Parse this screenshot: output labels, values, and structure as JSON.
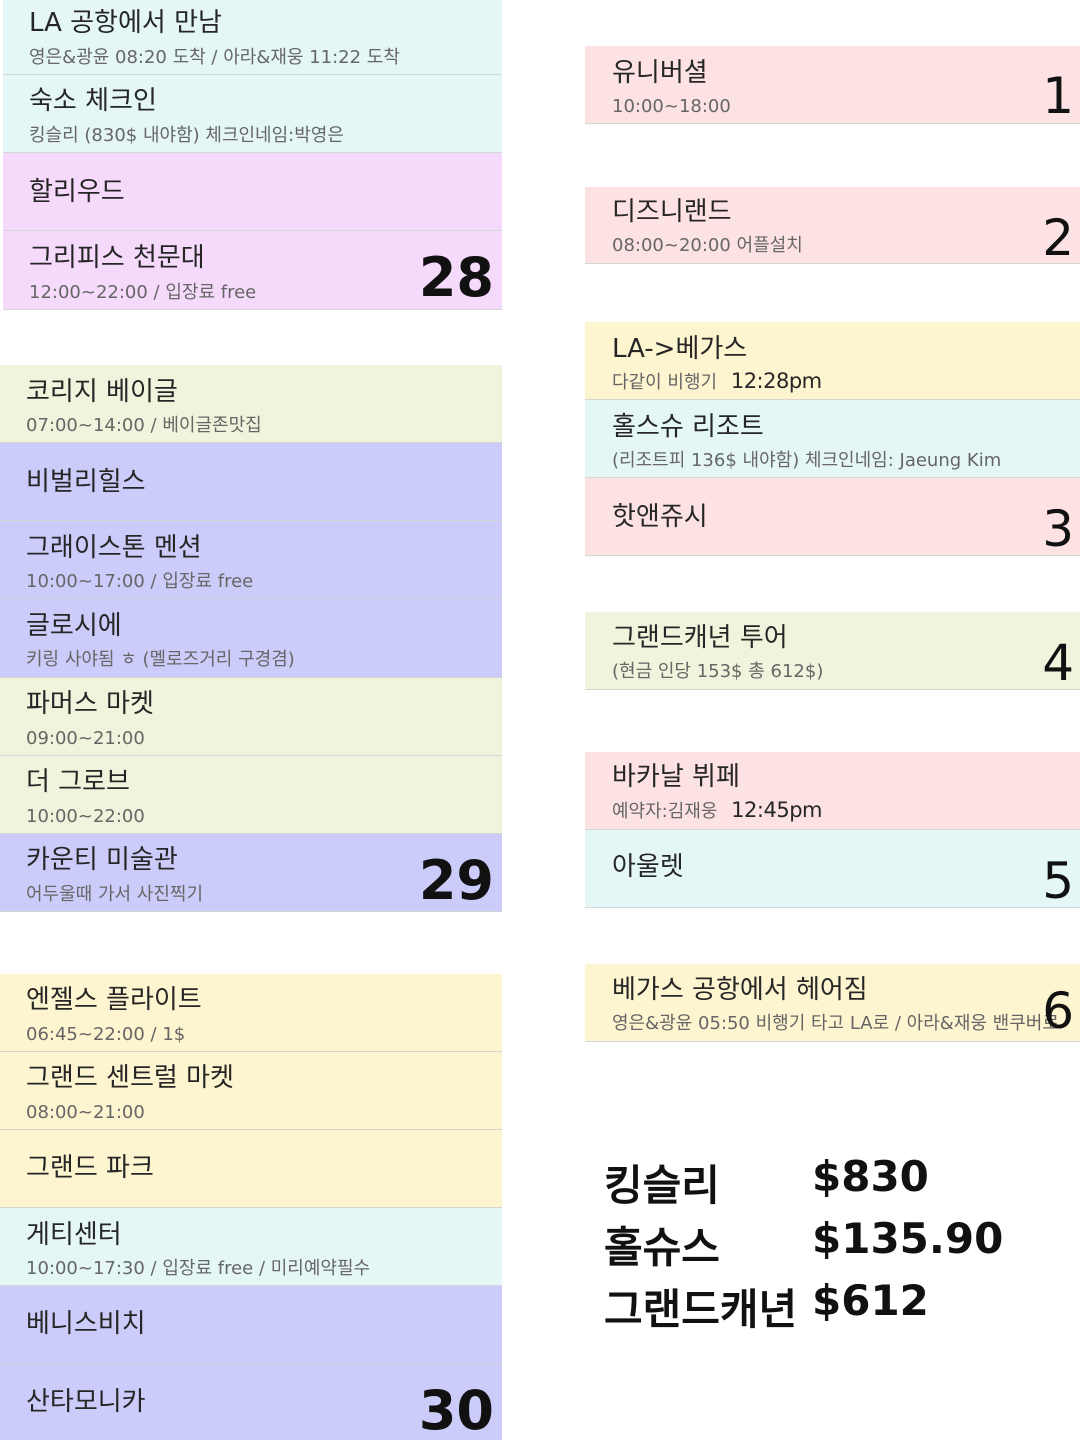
{
  "colors": {
    "cyan": "#e5f6f7",
    "pink": "#f6dafc",
    "lime": "#eef5dc",
    "lavender": "#ccccfb",
    "yellow": "#fdf4d0",
    "rose": "#fde2e3"
  },
  "left_column": {
    "day28": {
      "number": "28",
      "items": [
        {
          "title": "LA 공항에서 만남",
          "sub": "영은&광윤 08:20 도착 / 아라&재웅 11:22 도착"
        },
        {
          "title": "숙소 체크인",
          "sub": "킹슬리 (830$ 내야함) 체크인네임:박영은"
        },
        {
          "title": "할리우드",
          "sub": ""
        },
        {
          "title": "그리피스 천문대",
          "sub": "12:00~22:00 / 입장료 free"
        }
      ]
    },
    "day29": {
      "number": "29",
      "items": [
        {
          "title": "코리지 베이글",
          "sub": "07:00~14:00 / 베이글존맛집"
        },
        {
          "title": "비벌리힐스",
          "sub": ""
        },
        {
          "title": "그래이스톤 멘션",
          "sub": "10:00~17:00 / 입장료 free"
        },
        {
          "title": "글로시에",
          "sub": "키링 사야됨 ㅎ (멜로즈거리 구경겸)"
        },
        {
          "title": "파머스 마켓",
          "sub": "09:00~21:00"
        },
        {
          "title": "더 그로브",
          "sub": "10:00~22:00"
        },
        {
          "title": "카운티 미술관",
          "sub": "어두울때 가서 사진찍기"
        }
      ]
    },
    "day30": {
      "number": "30",
      "items": [
        {
          "title": "엔젤스 플라이트",
          "sub": "06:45~22:00 / 1$"
        },
        {
          "title": "그랜드 센트럴 마켓",
          "sub": "08:00~21:00"
        },
        {
          "title": "그랜드 파크",
          "sub": ""
        },
        {
          "title": "게티센터",
          "sub": "10:00~17:30 / 입장료 free / 미리예약필수"
        },
        {
          "title": "베니스비치",
          "sub": ""
        },
        {
          "title": "산타모니카",
          "sub": ""
        }
      ]
    }
  },
  "right_column": {
    "day1": {
      "number": "1",
      "items": [
        {
          "title": "유니버셜",
          "sub": "10:00~18:00"
        }
      ]
    },
    "day2": {
      "number": "2",
      "items": [
        {
          "title": "디즈니랜드",
          "sub": "08:00~20:00 어플설치"
        }
      ]
    },
    "day3": {
      "number": "3",
      "items": [
        {
          "title": "LA->베가스",
          "sub": "다같이 비행기",
          "time": "12:28pm"
        },
        {
          "title": "홀스슈 리조트",
          "sub": "(리조트피 136$ 내야함) 체크인네임: Jaeung Kim"
        },
        {
          "title": "핫앤쥬시",
          "sub": ""
        }
      ]
    },
    "day4": {
      "number": "4",
      "items": [
        {
          "title": "그랜드캐년 투어",
          "sub": "(현금 인당 153$ 총 612$)"
        }
      ]
    },
    "day5": {
      "number": "5",
      "items": [
        {
          "title": "바카날 뷔페",
          "sub": "예약자:김재웅",
          "time": "12:45pm"
        },
        {
          "title": "아울렛",
          "sub": ""
        }
      ]
    },
    "day6": {
      "number": "6",
      "items": [
        {
          "title": "베가스 공항에서 헤어짐",
          "sub": "영은&광윤 05:50 비행기 타고 LA로 / 아라&재웅 밴쿠버로"
        }
      ]
    }
  },
  "costs": [
    {
      "name": "킹슬리",
      "amount": "$830"
    },
    {
      "name": "홀슈스",
      "amount": "$135.90"
    },
    {
      "name": "그랜드캐년",
      "amount": "$612"
    }
  ]
}
